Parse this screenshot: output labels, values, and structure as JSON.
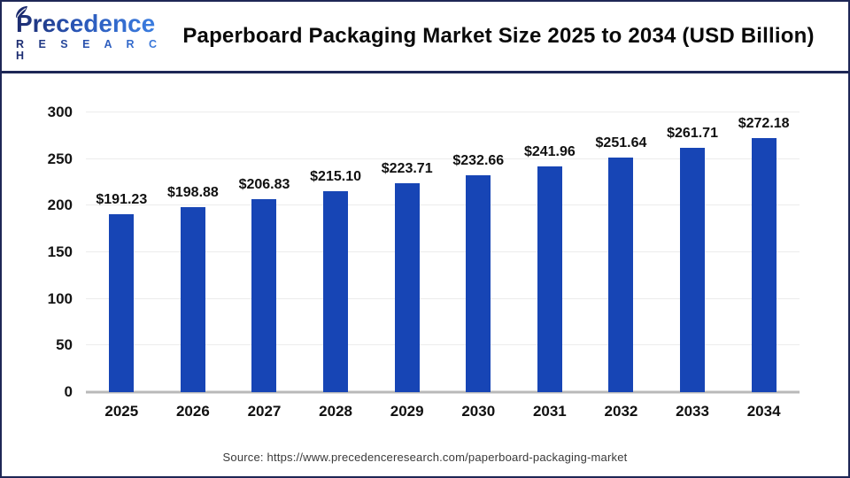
{
  "logo": {
    "name": "Precedence",
    "subname": "R E S E A R C H"
  },
  "header": {
    "title": "Paperboard Packaging Market Size 2025 to 2034 (USD Billion)"
  },
  "source": {
    "text": "Source: https://www.precedenceresearch.com/paperboard-packaging-market"
  },
  "colors": {
    "bar": "#1745b5",
    "frame": "#1e2756",
    "grid": "#ececec",
    "baseline": "#b9b9b9"
  },
  "chart_data": {
    "type": "bar",
    "title": "Paperboard Packaging Market Size 2025 to 2034 (USD Billion)",
    "categories": [
      "2025",
      "2026",
      "2027",
      "2028",
      "2029",
      "2030",
      "2031",
      "2032",
      "2033",
      "2034"
    ],
    "values": [
      191.23,
      198.88,
      206.83,
      215.1,
      223.71,
      232.66,
      241.96,
      251.64,
      261.71,
      272.18
    ],
    "value_labels": [
      "$191.23",
      "$198.88",
      "$206.83",
      "$215.10",
      "$223.71",
      "$232.66",
      "$241.96",
      "$251.64",
      "$261.71",
      "$272.18"
    ],
    "xlabel": "",
    "ylabel": "",
    "ylim": [
      0,
      300
    ],
    "yticks": [
      0,
      50,
      100,
      150,
      200,
      250,
      300
    ],
    "grid": true,
    "legend": false,
    "bar_color": "#1745b5"
  }
}
